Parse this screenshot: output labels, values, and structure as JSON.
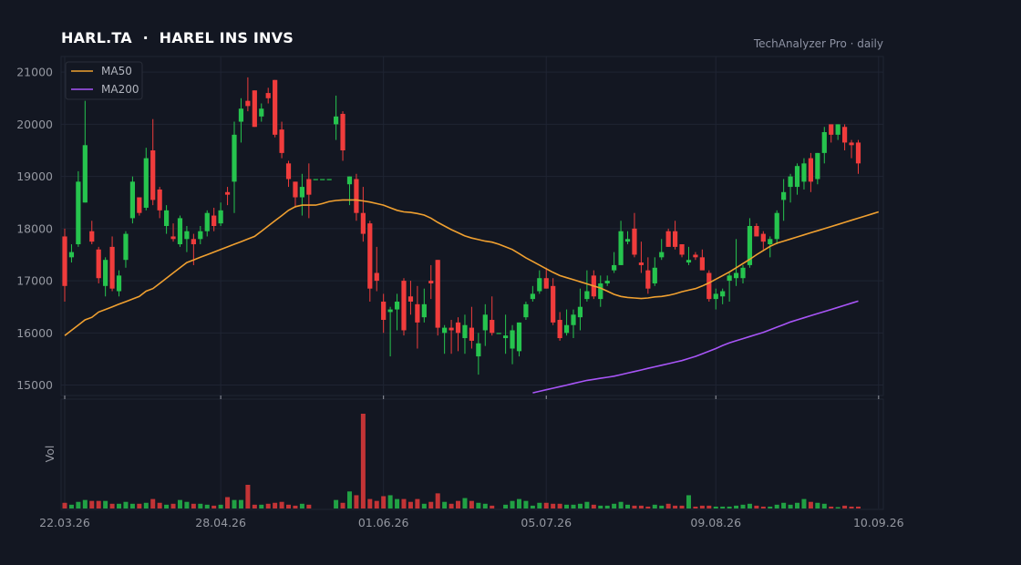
{
  "header": {
    "symbol": "HARL.TA",
    "separator": "·",
    "name": "HAREL INS INVS",
    "subtitle": "TechAnalyzer Pro · daily"
  },
  "colors": {
    "background": "#131722",
    "up": "#26c44e",
    "down": "#f03c3c",
    "ma50": "#f0a030",
    "ma200": "#a855f7",
    "grid": "#1f2433"
  },
  "chart_data": {
    "type": "candlestick",
    "frequency": "daily",
    "price_axis": {
      "ticks": [
        15000,
        16000,
        17000,
        18000,
        19000,
        20000,
        21000
      ],
      "ylim": [
        14800,
        21300
      ]
    },
    "volume_axis": {
      "label": "Vol"
    },
    "x_tick_labels": [
      "22.03.26",
      "28.04.26",
      "01.06.26",
      "05.07.26",
      "09.08.26",
      "10.09.26"
    ],
    "legend": {
      "position": "top-left",
      "entries": [
        "MA50",
        "MA200"
      ]
    },
    "grid": true,
    "candles": [
      [
        17850,
        18000,
        16600,
        16900,
        0.06
      ],
      [
        17450,
        17700,
        17350,
        17550,
        0.04
      ],
      [
        17700,
        19100,
        17650,
        18900,
        0.07
      ],
      [
        18500,
        20450,
        18500,
        19600,
        0.09
      ],
      [
        17950,
        18150,
        17700,
        17750,
        0.08
      ],
      [
        17600,
        17650,
        16950,
        17050,
        0.08
      ],
      [
        16900,
        17450,
        16700,
        17400,
        0.08
      ],
      [
        17650,
        17850,
        16800,
        16850,
        0.05
      ],
      [
        16800,
        17200,
        16700,
        17100,
        0.05
      ],
      [
        17400,
        17950,
        17250,
        17900,
        0.07
      ],
      [
        18200,
        19000,
        18100,
        18900,
        0.05
      ],
      [
        18600,
        18600,
        18250,
        18300,
        0.05
      ],
      [
        18400,
        19550,
        18350,
        19350,
        0.06
      ],
      [
        19500,
        20100,
        18450,
        18550,
        0.1
      ],
      [
        18750,
        18800,
        18200,
        18350,
        0.06
      ],
      [
        18050,
        18450,
        17900,
        18350,
        0.04
      ],
      [
        17850,
        18100,
        17750,
        17800,
        0.05
      ],
      [
        17700,
        18250,
        17650,
        18200,
        0.09
      ],
      [
        17800,
        18050,
        17550,
        17950,
        0.07
      ],
      [
        17800,
        17900,
        17300,
        17700,
        0.05
      ],
      [
        17800,
        18050,
        17700,
        17950,
        0.05
      ],
      [
        17950,
        18350,
        17850,
        18300,
        0.04
      ],
      [
        18250,
        18400,
        17950,
        18050,
        0.03
      ],
      [
        18100,
        18500,
        18050,
        18350,
        0.04
      ],
      [
        18700,
        18800,
        18450,
        18650,
        0.12
      ],
      [
        18900,
        20050,
        18300,
        19800,
        0.09
      ],
      [
        20050,
        20500,
        19650,
        20300,
        0.09
      ],
      [
        20450,
        20900,
        20250,
        20350,
        0.25
      ],
      [
        20650,
        20650,
        19950,
        19950,
        0.04
      ],
      [
        20150,
        20400,
        20050,
        20300,
        0.04
      ],
      [
        20600,
        20700,
        20400,
        20500,
        0.05
      ],
      [
        20850,
        20850,
        19750,
        19800,
        0.06
      ],
      [
        19900,
        20050,
        19350,
        19450,
        0.07
      ],
      [
        19250,
        19300,
        18800,
        18950,
        0.04
      ],
      [
        18900,
        18900,
        18400,
        18600,
        0.03
      ],
      [
        18600,
        19050,
        18250,
        18800,
        0.05
      ],
      [
        18950,
        19250,
        18200,
        18650,
        0.04
      ],
      [
        18950,
        18950,
        18950,
        18950,
        0.0
      ],
      [
        18950,
        18950,
        18950,
        18950,
        0.0
      ],
      [
        18950,
        18950,
        18950,
        18950,
        0.0
      ],
      [
        20000,
        20550,
        19700,
        20150,
        0.09
      ],
      [
        20200,
        20250,
        19300,
        19500,
        0.06
      ],
      [
        18850,
        19000,
        18450,
        19000,
        0.18
      ],
      [
        18950,
        19050,
        18150,
        18300,
        0.14
      ],
      [
        18300,
        18800,
        17750,
        17900,
        1.0
      ],
      [
        18100,
        18150,
        16600,
        16850,
        0.1
      ],
      [
        17150,
        17650,
        16800,
        17000,
        0.08
      ],
      [
        16600,
        16750,
        16000,
        16250,
        0.13
      ],
      [
        16400,
        16500,
        15550,
        16450,
        0.14
      ],
      [
        16450,
        16750,
        16050,
        16600,
        0.1
      ],
      [
        17000,
        17050,
        15950,
        16050,
        0.1
      ],
      [
        16700,
        17000,
        16350,
        16600,
        0.07
      ],
      [
        16550,
        16900,
        15700,
        16200,
        0.1
      ],
      [
        16300,
        16850,
        16200,
        16550,
        0.05
      ],
      [
        17000,
        17300,
        16650,
        16950,
        0.07
      ],
      [
        17400,
        17400,
        15950,
        16100,
        0.16
      ],
      [
        16000,
        16150,
        15600,
        16100,
        0.07
      ],
      [
        16100,
        16250,
        15600,
        16050,
        0.05
      ],
      [
        16200,
        16300,
        15650,
        16000,
        0.08
      ],
      [
        15900,
        16350,
        15600,
        16150,
        0.11
      ],
      [
        16100,
        16500,
        15700,
        15850,
        0.08
      ],
      [
        15550,
        16000,
        15200,
        15800,
        0.06
      ],
      [
        16050,
        16550,
        15750,
        16350,
        0.05
      ],
      [
        16250,
        16700,
        15950,
        16000,
        0.03
      ],
      [
        16000,
        16000,
        16000,
        16000,
        0.0
      ],
      [
        15900,
        16350,
        15600,
        15950,
        0.04
      ],
      [
        15700,
        16150,
        15400,
        16050,
        0.08
      ],
      [
        15650,
        16200,
        15550,
        16200,
        0.1
      ],
      [
        16300,
        16600,
        16250,
        16550,
        0.08
      ],
      [
        16650,
        16900,
        16600,
        16750,
        0.03
      ],
      [
        16800,
        17200,
        16750,
        17050,
        0.06
      ],
      [
        17050,
        17250,
        16850,
        16850,
        0.06
      ],
      [
        16900,
        17050,
        16150,
        16200,
        0.05
      ],
      [
        16250,
        16400,
        15850,
        15900,
        0.05
      ],
      [
        16000,
        16450,
        15950,
        16150,
        0.04
      ],
      [
        16150,
        16450,
        15900,
        16350,
        0.04
      ],
      [
        16300,
        16850,
        16050,
        16500,
        0.05
      ],
      [
        16650,
        17200,
        16600,
        16800,
        0.07
      ],
      [
        17100,
        17200,
        16650,
        16700,
        0.04
      ],
      [
        16650,
        17100,
        16500,
        16950,
        0.03
      ],
      [
        16950,
        17100,
        16900,
        17000,
        0.03
      ],
      [
        17200,
        17550,
        17150,
        17300,
        0.05
      ],
      [
        17300,
        18150,
        17300,
        17950,
        0.07
      ],
      [
        17750,
        17950,
        17700,
        17800,
        0.04
      ],
      [
        18000,
        18300,
        17450,
        17500,
        0.03
      ],
      [
        17350,
        17750,
        17150,
        17300,
        0.03
      ],
      [
        17200,
        17450,
        16750,
        16850,
        0.02
      ],
      [
        16950,
        17450,
        16900,
        17250,
        0.04
      ],
      [
        17450,
        17800,
        17400,
        17550,
        0.03
      ],
      [
        17950,
        18000,
        17650,
        17650,
        0.05
      ],
      [
        17950,
        18150,
        17600,
        17650,
        0.03
      ],
      [
        17700,
        17700,
        17450,
        17500,
        0.03
      ],
      [
        17350,
        17650,
        17300,
        17400,
        0.14
      ],
      [
        17500,
        17550,
        17400,
        17450,
        0.02
      ],
      [
        17450,
        17600,
        17250,
        17200,
        0.03
      ],
      [
        17150,
        17200,
        16600,
        16650,
        0.03
      ],
      [
        16650,
        16850,
        16450,
        16750,
        0.02
      ],
      [
        16700,
        16850,
        16550,
        16800,
        0.02
      ],
      [
        17000,
        17150,
        16600,
        17100,
        0.02
      ],
      [
        17050,
        17800,
        16900,
        17150,
        0.03
      ],
      [
        17050,
        17300,
        16950,
        17250,
        0.04
      ],
      [
        17300,
        18200,
        17250,
        18050,
        0.05
      ],
      [
        18050,
        18100,
        17850,
        17850,
        0.03
      ],
      [
        17900,
        17950,
        17600,
        17750,
        0.02
      ],
      [
        17700,
        17850,
        17450,
        17800,
        0.02
      ],
      [
        17800,
        18350,
        17700,
        18300,
        0.04
      ],
      [
        18550,
        18950,
        18150,
        18700,
        0.06
      ],
      [
        18800,
        19050,
        18500,
        19000,
        0.04
      ],
      [
        18800,
        19250,
        18650,
        19200,
        0.06
      ],
      [
        18900,
        19350,
        18750,
        19250,
        0.1
      ],
      [
        19350,
        19450,
        18700,
        18900,
        0.07
      ],
      [
        18950,
        19450,
        18850,
        19450,
        0.06
      ],
      [
        19450,
        19950,
        19250,
        19850,
        0.05
      ],
      [
        20000,
        20000,
        19650,
        19800,
        0.02
      ],
      [
        19800,
        20000,
        19700,
        20000,
        0.01
      ],
      [
        19950,
        20000,
        19500,
        19650,
        0.03
      ],
      [
        19650,
        19700,
        19350,
        19600,
        0.02
      ],
      [
        19650,
        19700,
        19050,
        19250,
        0.02
      ]
    ],
    "ma50": [
      15950,
      16050,
      16150,
      16250,
      16300,
      16400,
      16450,
      16500,
      16550,
      16600,
      16650,
      16700,
      16800,
      16850,
      16950,
      17050,
      17150,
      17250,
      17350,
      17400,
      17450,
      17500,
      17550,
      17600,
      17650,
      17700,
      17750,
      17800,
      17850,
      17950,
      18050,
      18150,
      18250,
      18350,
      18420,
      18450,
      18450,
      18450,
      18480,
      18520,
      18540,
      18550,
      18550,
      18550,
      18530,
      18510,
      18480,
      18450,
      18400,
      18350,
      18320,
      18310,
      18290,
      18260,
      18200,
      18120,
      18050,
      17980,
      17920,
      17860,
      17820,
      17790,
      17760,
      17740,
      17700,
      17650,
      17600,
      17520,
      17440,
      17370,
      17300,
      17230,
      17160,
      17100,
      17060,
      17020,
      16980,
      16940,
      16900,
      16860,
      16800,
      16740,
      16700,
      16680,
      16670,
      16660,
      16670,
      16690,
      16700,
      16720,
      16750,
      16790,
      16820,
      16850,
      16900,
      16960,
      17030,
      17100,
      17170,
      17250,
      17330,
      17410,
      17500,
      17580,
      17660,
      17720,
      17760,
      17800,
      17840,
      17880,
      17920,
      17960,
      18000,
      18040,
      18080,
      18120,
      18160,
      18200,
      18240,
      18280,
      18320
    ],
    "ma200": [
      14850,
      14880,
      14910,
      14940,
      14970,
      15000,
      15030,
      15060,
      15090,
      15110,
      15130,
      15150,
      15170,
      15200,
      15230,
      15260,
      15290,
      15320,
      15350,
      15380,
      15410,
      15440,
      15470,
      15510,
      15550,
      15600,
      15650,
      15700,
      15760,
      15810,
      15850,
      15890,
      15930,
      15970,
      16010,
      16060,
      16110,
      16160,
      16210,
      16250,
      16290,
      16330,
      16370,
      16410,
      16450,
      16490,
      16530,
      16570,
      16610
    ]
  }
}
